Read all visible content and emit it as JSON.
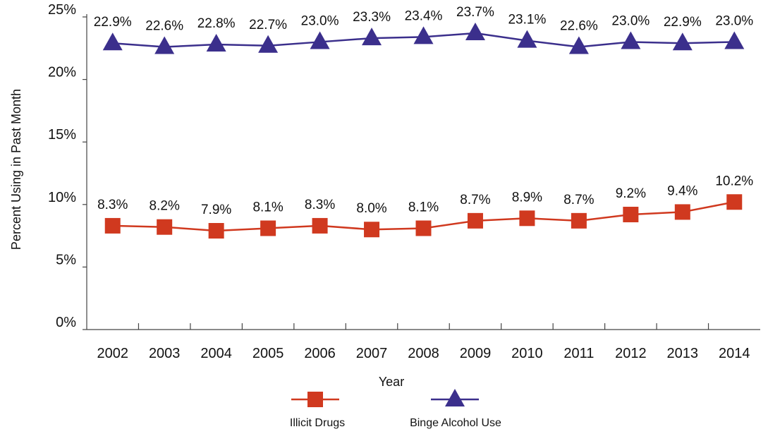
{
  "chart_data": {
    "type": "line",
    "title": "",
    "xlabel": "Year",
    "ylabel": "Percent Using in Past Month",
    "x": [
      "2002",
      "2003",
      "2004",
      "2005",
      "2006",
      "2007",
      "2008",
      "2009",
      "2010",
      "2011",
      "2012",
      "2013",
      "2014"
    ],
    "y_ticks": [
      "0%",
      "5%",
      "10%",
      "15%",
      "20%",
      "25%"
    ],
    "ylim": [
      0,
      25
    ],
    "grid": false,
    "legend_position": "bottom",
    "series": [
      {
        "name": "Illicit Drugs",
        "marker": "square",
        "color": "#d0391f",
        "values": [
          8.3,
          8.2,
          7.9,
          8.1,
          8.3,
          8.0,
          8.1,
          8.7,
          8.9,
          8.7,
          9.2,
          9.4,
          10.2
        ],
        "labels": [
          "8.3%",
          "8.2%",
          "7.9%",
          "8.1%",
          "8.3%",
          "8.0%",
          "8.1%",
          "8.7%",
          "8.9%",
          "8.7%",
          "9.2%",
          "9.4%",
          "10.2%"
        ]
      },
      {
        "name": "Binge Alcohol Use",
        "marker": "triangle",
        "color": "#3b2f8c",
        "values": [
          22.9,
          22.6,
          22.8,
          22.7,
          23.0,
          23.3,
          23.4,
          23.7,
          23.1,
          22.6,
          23.0,
          22.9,
          23.0
        ],
        "labels": [
          "22.9%",
          "22.6%",
          "22.8%",
          "22.7%",
          "23.0%",
          "23.3%",
          "23.4%",
          "23.7%",
          "23.1%",
          "22.6%",
          "23.0%",
          "22.9%",
          "23.0%"
        ]
      }
    ]
  }
}
